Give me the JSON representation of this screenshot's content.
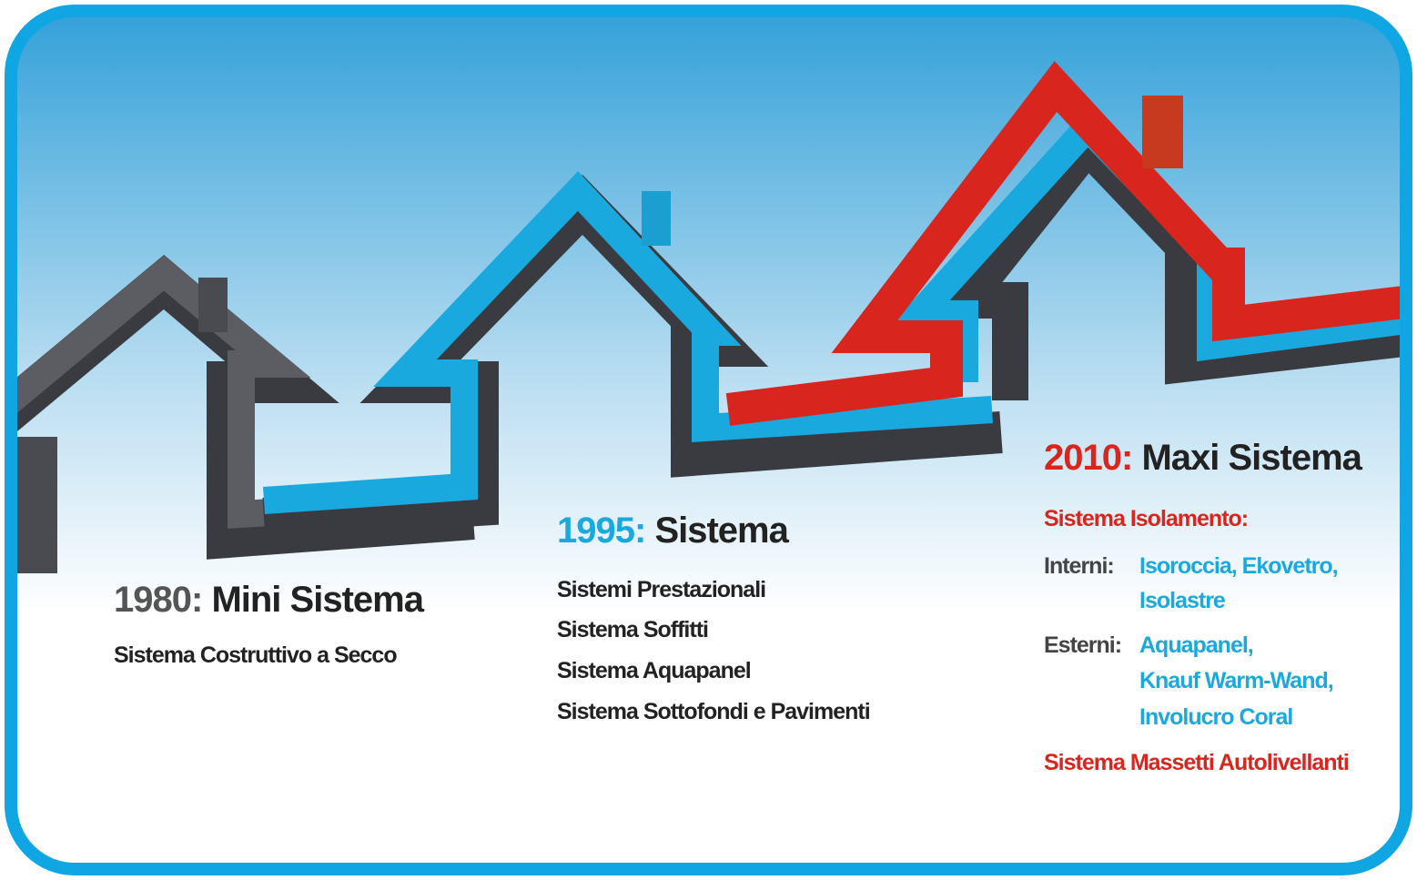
{
  "milestones": [
    {
      "year": "1980:",
      "title": "Mini Sistema",
      "items": [
        "Sistema Costruttivo a Secco"
      ]
    },
    {
      "year": "1995:",
      "title": "Sistema",
      "items": [
        "Sistemi Prestazionali",
        "Sistema Soffitti",
        "Sistema Aquapanel",
        "Sistema Sottofondi e Pavimenti"
      ]
    },
    {
      "year": "2010:",
      "title": "Maxi Sistema",
      "heading": "Sistema Isolamento:",
      "groups": [
        {
          "label": "Interni:",
          "lines": [
            "Isoroccia, Ekovetro,",
            "Isolastre"
          ]
        },
        {
          "label": "Esterni:",
          "lines": [
            "Aquapanel,",
            "Knauf Warm-Wand,",
            "Involucro Coral"
          ]
        }
      ],
      "footer": "Sistema Massetti Autolivellanti"
    }
  ]
}
